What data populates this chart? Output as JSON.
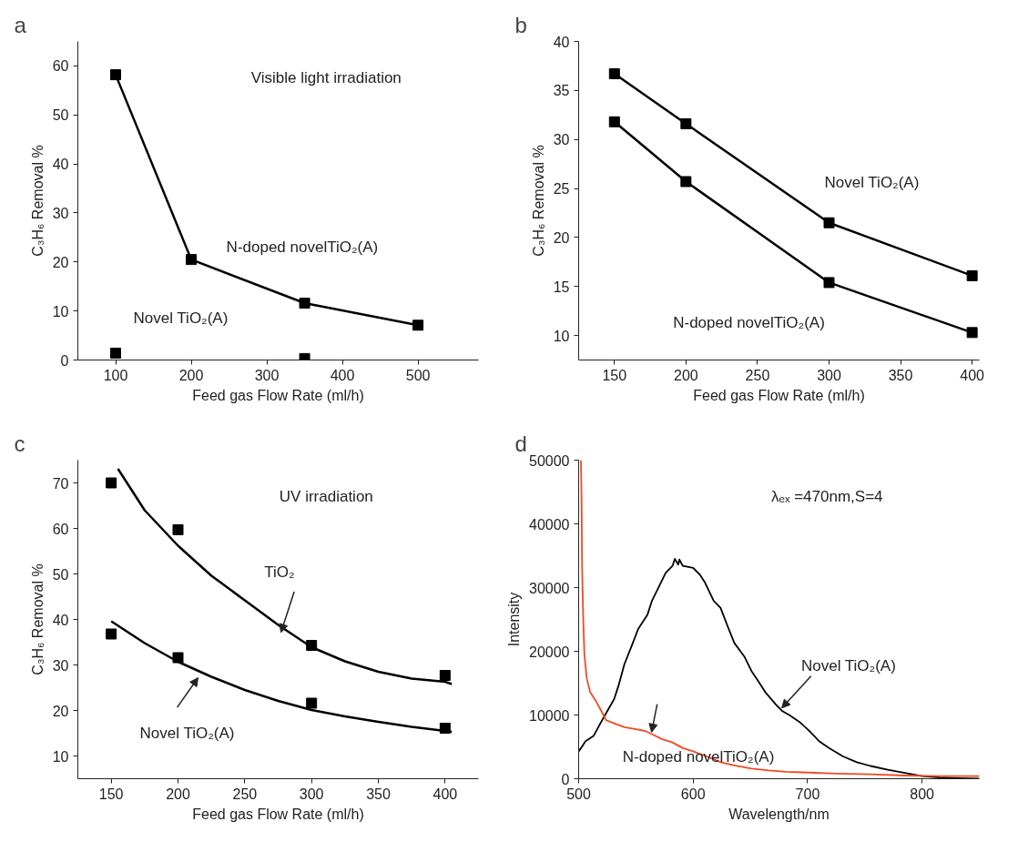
{
  "chart_data": [
    {
      "type": "line",
      "title": "a",
      "xlabel": "Feed gas Flow Rate (ml/h)",
      "ylabel": "C₃H₆ Removal %",
      "xlim": [
        50,
        580
      ],
      "ylim": [
        0,
        65
      ],
      "xticks": [
        100,
        200,
        300,
        400,
        500
      ],
      "yticks": [
        0,
        10,
        20,
        30,
        40,
        50,
        60
      ],
      "marker": "square",
      "series": [
        {
          "name": "N-doped novelTiO₂(A)",
          "color": "#000000",
          "x": [
            100,
            200,
            350,
            500
          ],
          "values": [
            58.2,
            20.5,
            11.6,
            7.1
          ]
        },
        {
          "name": "Novel TiO₂(A)",
          "type": "scatter",
          "color": "#000000",
          "x": [
            100,
            350
          ],
          "values": [
            1.4,
            0.3
          ]
        }
      ],
      "annotations": [
        "Visible light irradiation"
      ]
    },
    {
      "type": "line",
      "title": "b",
      "xlabel": "Feed gas Flow Rate (ml/h)",
      "ylabel": "C₃H₆ Removal %",
      "xlim": [
        125,
        405
      ],
      "ylim": [
        7.5,
        40
      ],
      "xticks": [
        150,
        200,
        250,
        300,
        350,
        400
      ],
      "yticks": [
        10,
        15,
        20,
        25,
        30,
        35,
        40
      ],
      "marker": "square",
      "series": [
        {
          "name": "Novel TiO₂(A)",
          "color": "#000000",
          "x": [
            150,
            200,
            300,
            400
          ],
          "values": [
            36.7,
            31.6,
            21.5,
            16.1
          ]
        },
        {
          "name": "N-doped novelTiO₂(A)",
          "color": "#000000",
          "x": [
            150,
            200,
            300,
            400
          ],
          "values": [
            31.8,
            25.7,
            15.4,
            10.3
          ]
        }
      ]
    },
    {
      "type": "scatter",
      "title": "c",
      "xlabel": "Feed gas Flow Rate (ml/h)",
      "ylabel": "C₃H₆ Removal %",
      "xlim": [
        125,
        425
      ],
      "ylim": [
        5,
        75
      ],
      "xticks": [
        150,
        200,
        250,
        300,
        350,
        400
      ],
      "yticks": [
        10,
        20,
        30,
        40,
        50,
        60,
        70
      ],
      "marker": "square",
      "series": [
        {
          "color": "#000000",
          "x": [
            150,
            200,
            300,
            400
          ],
          "values": [
            70.0,
            59.7,
            34.3,
            27.7
          ]
        },
        {
          "name": "TiO₂",
          "type": "line",
          "marker": "none",
          "color": "#000000",
          "x": [
            155,
            175,
            200,
            225,
            250,
            275,
            300,
            325,
            350,
            375,
            400,
            405
          ],
          "values": [
            73.1,
            64.0,
            56.2,
            49.6,
            44.2,
            38.8,
            33.9,
            30.8,
            28.5,
            27.0,
            26.3,
            25.8
          ]
        },
        {
          "color": "#000000",
          "x": [
            150,
            200,
            300,
            400
          ],
          "values": [
            36.8,
            31.6,
            21.6,
            16.1
          ]
        },
        {
          "name": "Novel TiO₂(A)",
          "type": "line",
          "marker": "none",
          "color": "#000000",
          "x": [
            150,
            175,
            200,
            225,
            250,
            275,
            300,
            325,
            350,
            375,
            400,
            405
          ],
          "values": [
            39.6,
            34.8,
            30.7,
            27.4,
            24.5,
            22.1,
            20.1,
            18.7,
            17.5,
            16.4,
            15.5,
            15.3
          ]
        }
      ],
      "annotations": [
        "UV irradiation"
      ]
    },
    {
      "type": "line",
      "title": "d",
      "xlabel": "Wavelength/nm",
      "ylabel": "Intensity",
      "xlim": [
        500,
        850
      ],
      "ylim": [
        0,
        50000
      ],
      "xticks": [
        500,
        600,
        700,
        800
      ],
      "yticks": [
        0,
        10000,
        20000,
        30000,
        40000,
        50000
      ],
      "series": [
        {
          "name": "Novel TiO₂(A)",
          "color": "#000000",
          "x": [
            500,
            502,
            506,
            513,
            519,
            525,
            531,
            535,
            540,
            546,
            552,
            560,
            564,
            570,
            576,
            582,
            584,
            587,
            588,
            591,
            600,
            606,
            610,
            618,
            624,
            630,
            636,
            645,
            651,
            657,
            663,
            672,
            678,
            684,
            693,
            701,
            710,
            719,
            731,
            743,
            755,
            770,
            785,
            800,
            815,
            830,
            850
          ],
          "values": [
            4300,
            4800,
            5900,
            6700,
            8700,
            10600,
            12500,
            14700,
            18000,
            20700,
            23500,
            25700,
            27900,
            30100,
            32300,
            33400,
            34500,
            33600,
            34400,
            33400,
            33100,
            32000,
            30900,
            27900,
            26800,
            24000,
            21300,
            19100,
            16900,
            15300,
            13600,
            11700,
            10600,
            10000,
            8900,
            7600,
            5900,
            4800,
            3500,
            2600,
            2000,
            1400,
            900,
            400,
            200,
            100,
            0
          ]
        },
        {
          "name": "N-doped novelTiO₂(A)",
          "color": "#f04a23",
          "x": [
            502,
            502.5,
            503,
            504,
            505,
            507,
            510,
            515,
            519,
            524,
            531,
            540,
            549,
            558,
            564,
            573,
            582,
            591,
            600,
            612,
            624,
            636,
            651,
            666,
            681,
            696,
            725,
            755,
            785,
            815,
            850
          ],
          "values": [
            50000,
            44300,
            33400,
            25100,
            19600,
            15800,
            13600,
            12200,
            10900,
            9200,
            8700,
            8100,
            7800,
            7500,
            7000,
            6200,
            5700,
            4800,
            4300,
            3500,
            2600,
            2100,
            1600,
            1300,
            1100,
            1000,
            800,
            700,
            500,
            400,
            400
          ]
        }
      ],
      "annotations": [
        "λₑₓ =470nm,S=4"
      ]
    }
  ]
}
